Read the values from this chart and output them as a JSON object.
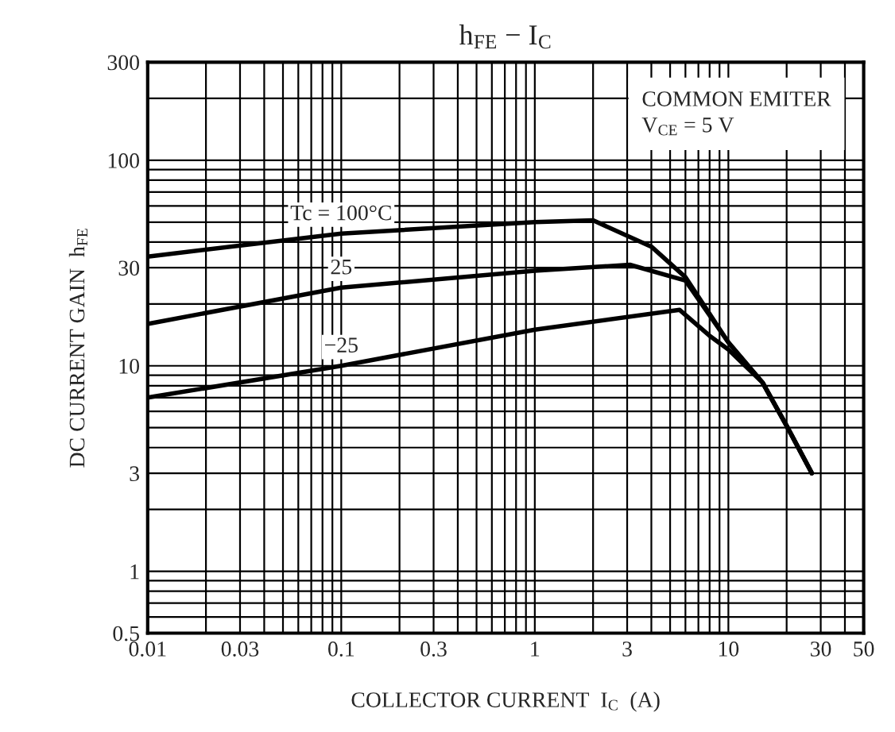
{
  "chart_data": {
    "type": "line",
    "title": "h$_{FE}$ − I$_{C}$",
    "xlabel": "COLLECTOR CURRENT  I$_{C}$  (A)",
    "ylabel": "DC CURRENT GAIN  h$_{FE}$",
    "log": "xy",
    "grid": true,
    "line_style": "solid",
    "marker": "none",
    "xlim": [
      0.01,
      50
    ],
    "ylim": [
      0.5,
      300
    ],
    "xticks": [
      0.01,
      0.03,
      0.1,
      0.3,
      1,
      3,
      10,
      30,
      50
    ],
    "yticks": [
      0.5,
      1,
      3,
      10,
      30,
      100,
      300
    ],
    "series": [
      {
        "name": "Tc = 100°C",
        "color": "#000000",
        "x": [
          0.01,
          0.1,
          1,
          2,
          4,
          6,
          10,
          15,
          20,
          27
        ],
        "values": [
          34,
          44,
          50,
          51,
          38,
          27,
          13,
          8.3,
          5.1,
          3
        ]
      },
      {
        "name": "25",
        "color": "#000000",
        "x": [
          0.01,
          0.1,
          1,
          3.1,
          6,
          10,
          15,
          20,
          27
        ],
        "values": [
          16,
          24,
          29,
          31,
          26,
          13,
          8.3,
          5.1,
          3
        ]
      },
      {
        "name": "−25",
        "color": "#000000",
        "x": [
          0.01,
          0.1,
          1,
          5.6,
          8,
          10,
          15,
          20,
          27
        ],
        "values": [
          7,
          10,
          15,
          18.7,
          14,
          12,
          8.3,
          5.1,
          3
        ]
      }
    ],
    "annotations": [
      "COMMON EMITER",
      "V$_{CE}$ = 5 V"
    ]
  }
}
